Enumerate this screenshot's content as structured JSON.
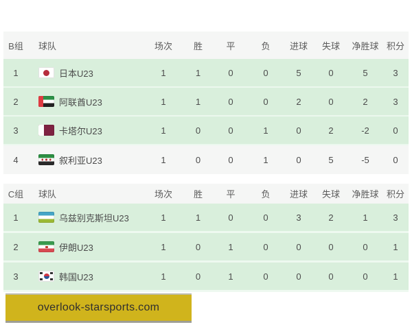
{
  "colors": {
    "row_highlight_green": "#d9efdc",
    "header_bg": "#f5f6f5",
    "plain_row_bg": "#f5f6f5",
    "banner_yellow": "#d0b41c",
    "text": "#4c4c4c"
  },
  "banner": {
    "text": "overlook-starsports.com"
  },
  "tables": [
    {
      "group_label": "B组",
      "headers": [
        "球队",
        "场次",
        "胜",
        "平",
        "负",
        "进球",
        "失球",
        "净胜球",
        "积分"
      ],
      "rows": [
        {
          "rank": "1",
          "flag": "japan",
          "team": "日本U23",
          "values": [
            "1",
            "1",
            "0",
            "0",
            "5",
            "0",
            "5",
            "3"
          ],
          "highlight": true
        },
        {
          "rank": "2",
          "flag": "uae",
          "team": "阿联酋U23",
          "values": [
            "1",
            "1",
            "0",
            "0",
            "2",
            "0",
            "2",
            "3"
          ],
          "highlight": true
        },
        {
          "rank": "3",
          "flag": "qatar",
          "team": "卡塔尔U23",
          "values": [
            "1",
            "0",
            "0",
            "1",
            "0",
            "2",
            "-2",
            "0"
          ],
          "highlight": true
        },
        {
          "rank": "4",
          "flag": "syria",
          "team": "叙利亚U23",
          "values": [
            "1",
            "0",
            "0",
            "1",
            "0",
            "5",
            "-5",
            "0"
          ],
          "highlight": false
        }
      ]
    },
    {
      "group_label": "C组",
      "headers": [
        "球队",
        "场次",
        "胜",
        "平",
        "负",
        "进球",
        "失球",
        "净胜球",
        "积分"
      ],
      "rows": [
        {
          "rank": "1",
          "flag": "uzbekistan",
          "team": "乌兹别克斯坦U23",
          "values": [
            "1",
            "1",
            "0",
            "0",
            "3",
            "2",
            "1",
            "3"
          ],
          "highlight": true
        },
        {
          "rank": "2",
          "flag": "iran",
          "team": "伊朗U23",
          "values": [
            "1",
            "0",
            "1",
            "0",
            "0",
            "0",
            "0",
            "1"
          ],
          "highlight": true
        },
        {
          "rank": "3",
          "flag": "south-korea",
          "team": "韩国U23",
          "values": [
            "1",
            "0",
            "1",
            "0",
            "0",
            "0",
            "0",
            "1"
          ],
          "highlight": true
        }
      ]
    }
  ]
}
